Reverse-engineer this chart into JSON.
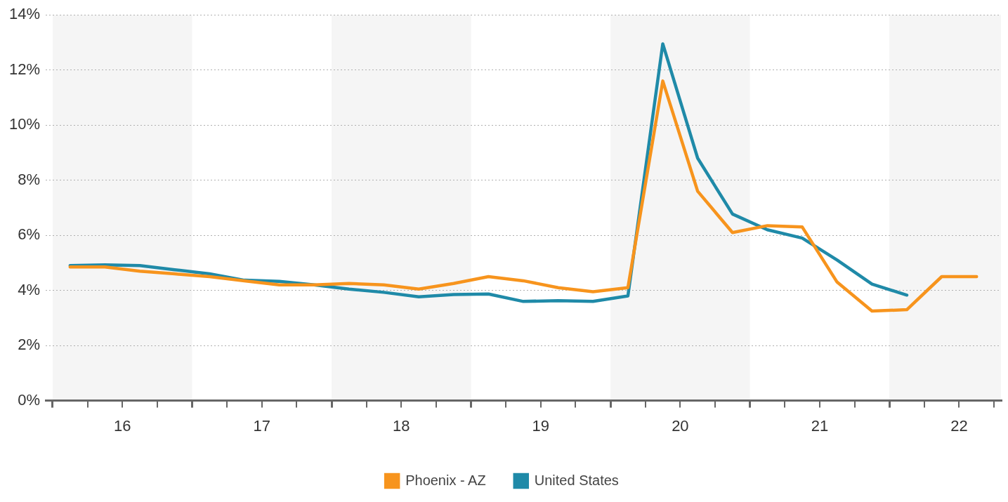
{
  "chart_data": {
    "type": "line",
    "x": [
      16.125,
      16.375,
      16.625,
      16.875,
      17.125,
      17.375,
      17.625,
      17.875,
      18.125,
      18.375,
      18.625,
      18.875,
      19.125,
      19.375,
      19.625,
      19.875,
      20.125,
      20.375,
      20.625,
      20.875,
      21.125,
      21.375,
      21.625,
      21.875,
      22.125,
      22.375,
      22.625
    ],
    "series": [
      {
        "name": "Phoenix - AZ",
        "color": "#f7941d",
        "values": [
          4.85,
          4.85,
          4.7,
          4.6,
          4.5,
          4.35,
          4.2,
          4.2,
          4.25,
          4.2,
          4.05,
          4.25,
          4.5,
          4.35,
          4.1,
          3.95,
          4.1,
          11.6,
          7.6,
          6.1,
          6.35,
          6.3,
          4.3,
          3.25,
          3.3,
          4.5,
          4.5
        ]
      },
      {
        "name": "United States",
        "color": "#1f8aa8",
        "values": [
          4.9,
          4.93,
          4.9,
          4.75,
          4.6,
          4.37,
          4.33,
          4.2,
          4.05,
          3.93,
          3.77,
          3.85,
          3.87,
          3.6,
          3.63,
          3.6,
          3.8,
          12.95,
          8.8,
          6.77,
          6.2,
          5.9,
          5.1,
          4.23,
          3.83,
          null,
          null
        ]
      }
    ],
    "xlim": [
      15.95,
      22.8
    ],
    "xticks": [
      {
        "value": 16,
        "label": null
      },
      {
        "value": 16.25,
        "label": null
      },
      {
        "value": 16.5,
        "label": "16"
      },
      {
        "value": 16.75,
        "label": null
      },
      {
        "value": 17,
        "label": null
      },
      {
        "value": 17.25,
        "label": null
      },
      {
        "value": 17.5,
        "label": "17"
      },
      {
        "value": 17.75,
        "label": null
      },
      {
        "value": 18,
        "label": null
      },
      {
        "value": 18.25,
        "label": null
      },
      {
        "value": 18.5,
        "label": "18"
      },
      {
        "value": 18.75,
        "label": null
      },
      {
        "value": 19,
        "label": null
      },
      {
        "value": 19.25,
        "label": null
      },
      {
        "value": 19.5,
        "label": "19"
      },
      {
        "value": 19.75,
        "label": null
      },
      {
        "value": 20,
        "label": null
      },
      {
        "value": 20.25,
        "label": null
      },
      {
        "value": 20.5,
        "label": "20"
      },
      {
        "value": 20.75,
        "label": null
      },
      {
        "value": 21,
        "label": null
      },
      {
        "value": 21.25,
        "label": null
      },
      {
        "value": 21.5,
        "label": "21"
      },
      {
        "value": 21.75,
        "label": null
      },
      {
        "value": 22,
        "label": null
      },
      {
        "value": 22.25,
        "label": null
      },
      {
        "value": 22.5,
        "label": "22"
      },
      {
        "value": 22.75,
        "label": null
      }
    ],
    "ylim": [
      0,
      14
    ],
    "yticks": [
      {
        "value": 0,
        "label": "0%"
      },
      {
        "value": 2,
        "label": "2%"
      },
      {
        "value": 4,
        "label": "4%"
      },
      {
        "value": 6,
        "label": "6%"
      },
      {
        "value": 8,
        "label": "8%"
      },
      {
        "value": 10,
        "label": "10%"
      },
      {
        "value": 12,
        "label": "12%"
      },
      {
        "value": 14,
        "label": "14%"
      }
    ],
    "bands": [
      {
        "axis": "x",
        "from": 16,
        "to": 17,
        "color": "#f5f5f5"
      },
      {
        "axis": "x",
        "from": 18,
        "to": 19,
        "color": "#f5f5f5"
      },
      {
        "axis": "x",
        "from": 20,
        "to": 21,
        "color": "#f5f5f5"
      },
      {
        "axis": "x",
        "from": 22,
        "to": 22.8,
        "color": "#f5f5f5"
      }
    ],
    "grid": "y",
    "legend": "bottom",
    "marker": "none",
    "line_style": "solid"
  }
}
